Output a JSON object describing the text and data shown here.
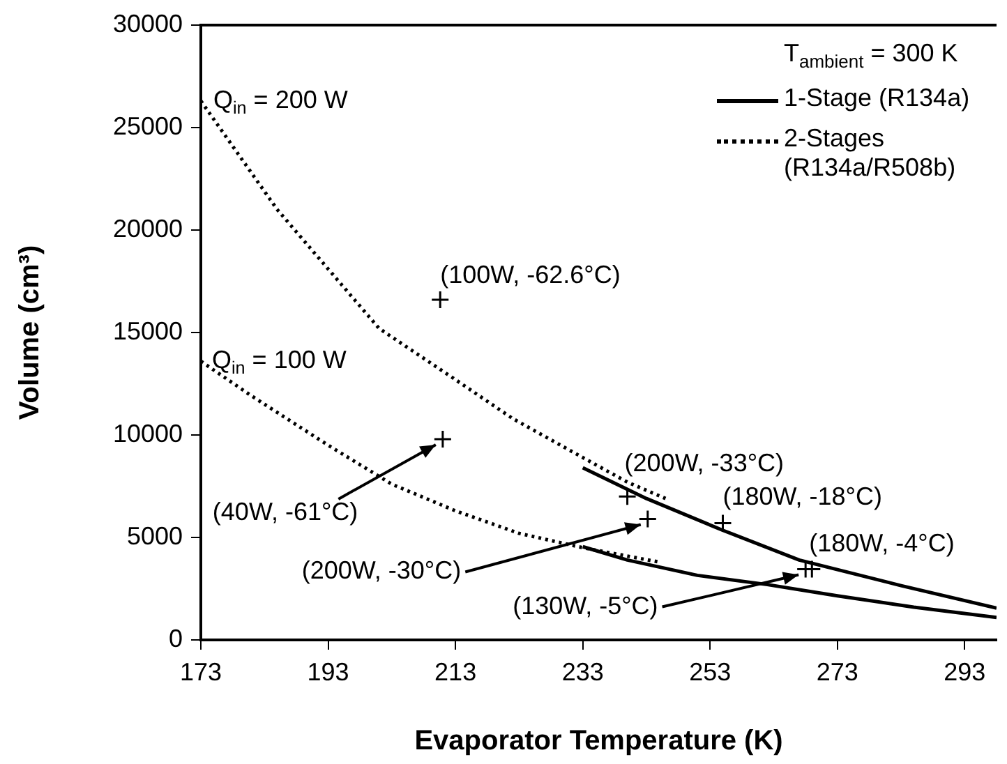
{
  "chart_data": {
    "type": "line",
    "xlabel": "Evaporator Temperature (K)",
    "ylabel": "Volume (cm³)",
    "legend_title": "T$_{ambient}$ = 300 K",
    "xlim": [
      173,
      298
    ],
    "xticks": [
      173,
      193,
      213,
      233,
      253,
      273,
      293
    ],
    "ylim": [
      0,
      30000
    ],
    "yticks": [
      0,
      5000,
      10000,
      15000,
      20000,
      25000,
      30000
    ],
    "grid": false,
    "legend": "top right",
    "series": [
      {
        "name": "1-Stage (R134a)",
        "line_style": "solid",
        "marker": "none",
        "color": "#000000",
        "x": [
          233,
          243,
          255,
          267,
          283,
          298
        ],
        "values": [
          8400,
          6900,
          5350,
          3900,
          2650,
          1550
        ]
      },
      {
        "line_style": "solid",
        "marker": "none",
        "color": "#000000",
        "x": [
          233,
          240,
          251,
          262,
          273,
          285,
          298
        ],
        "values": [
          4550,
          3900,
          3150,
          2700,
          2150,
          1600,
          1100
        ]
      },
      {
        "name": "2-Stages (R134a/R508b)",
        "line_style": "dotted",
        "marker": "none",
        "color": "#000000",
        "x": [
          173,
          185,
          201,
          213,
          222,
          233,
          240,
          246
        ],
        "values": [
          26300,
          21000,
          15200,
          12700,
          10800,
          8900,
          7700,
          6900
        ]
      },
      {
        "line_style": "dotted",
        "marker": "none",
        "color": "#000000",
        "x": [
          173,
          181,
          193,
          203,
          213,
          223,
          233,
          245
        ],
        "values": [
          13600,
          11900,
          9500,
          7600,
          6300,
          5200,
          4500,
          3800
        ]
      },
      {
        "type": "scatter",
        "marker": "cross",
        "color": "#000000",
        "x": [
          210.6,
          211,
          240,
          243.2,
          255,
          269,
          268
        ],
        "values": [
          16600,
          9800,
          7000,
          5900,
          5700,
          3450,
          3450
        ]
      }
    ],
    "annotations": [
      {
        "text": "Q$_{in}$ = 200 W",
        "x": 173,
        "y": 26300
      },
      {
        "text": "Q$_{in}$ = 100 W",
        "x": 173,
        "y": 13600
      },
      {
        "text": "(100W, -62.6°C)",
        "x": 210.6,
        "y": 16600
      },
      {
        "text": "(40W, -61°C)",
        "x": 211,
        "y": 9800
      },
      {
        "text": "(200W, -33°C)",
        "x": 240,
        "y": 7000
      },
      {
        "text": "(200W, -30°C)",
        "x": 243.2,
        "y": 5900
      },
      {
        "text": "(180W, -18°C)",
        "x": 255,
        "y": 5700
      },
      {
        "text": "(180W, -4°C)",
        "x": 269,
        "y": 3450
      },
      {
        "text": "(130W, -5°C)",
        "x": 268,
        "y": 3450
      }
    ]
  }
}
